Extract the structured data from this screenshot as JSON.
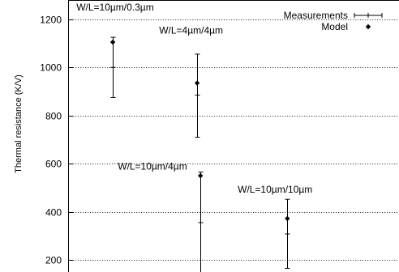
{
  "chart_data": {
    "type": "scatter",
    "ylabel": "Thermal resistance (K/V)",
    "ylim": [
      150,
      1280
    ],
    "yticks": [
      200,
      400,
      600,
      800,
      1000,
      1200
    ],
    "xlim": [
      0,
      4
    ],
    "grid": "horizontal-dotted",
    "legend_position": "top-right",
    "series": [
      {
        "name": "Measurements",
        "marker": "errorbar",
        "points": [
          {
            "x": 0.54,
            "y": 1000,
            "low": 875,
            "high": 1125
          },
          {
            "x": 1.56,
            "y": 885,
            "low": 710,
            "high": 1055
          },
          {
            "x": 1.6,
            "y": 355,
            "low": 145,
            "high": 565
          },
          {
            "x": 2.65,
            "y": 308,
            "low": 165,
            "high": 452
          }
        ]
      },
      {
        "name": "Model",
        "marker": "diamond",
        "points": [
          {
            "x": 0.54,
            "y": 1105
          },
          {
            "x": 1.56,
            "y": 935
          },
          {
            "x": 1.6,
            "y": 550
          },
          {
            "x": 2.65,
            "y": 372
          }
        ]
      }
    ],
    "annotations": [
      {
        "text": "W/L=10µm/0.3µm",
        "x": 0.1,
        "y": 1237
      },
      {
        "text": "W/L=4µm/4µm",
        "x": 1.1,
        "y": 1140
      },
      {
        "text": "W/L=10µm/4µm",
        "x": 0.6,
        "y": 575
      },
      {
        "text": "W/L=10µm/10µm",
        "x": 2.05,
        "y": 480
      }
    ]
  }
}
